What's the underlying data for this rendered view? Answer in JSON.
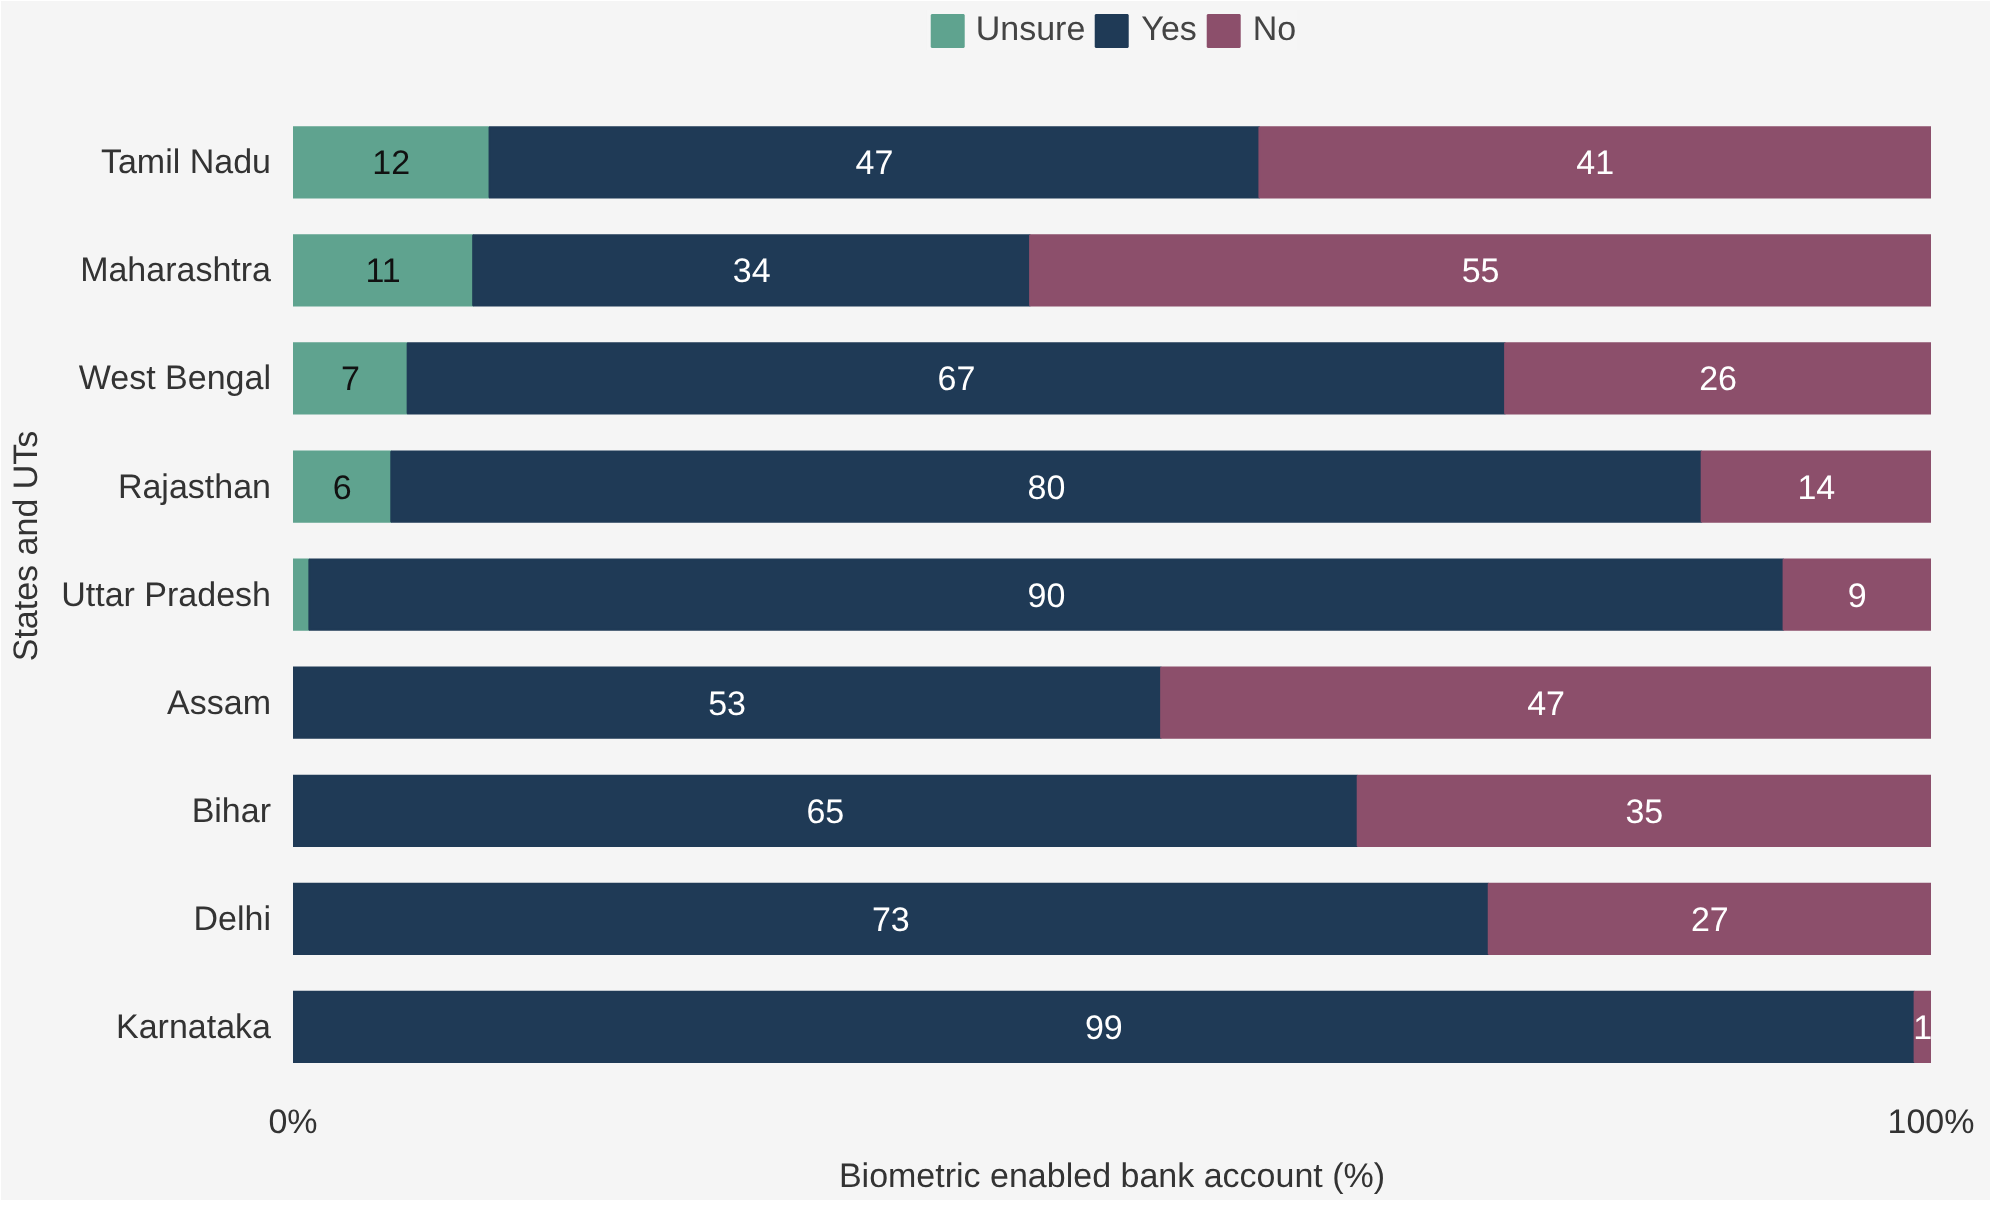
{
  "chart_data": {
    "type": "bar",
    "orientation": "horizontal",
    "stacked": true,
    "xlabel": "Biometric enabled bank account (%)",
    "ylabel": "States and UTs",
    "categories": [
      "Tamil Nadu",
      "Maharashtra",
      "West Bengal",
      "Rajasthan",
      "Uttar Pradesh",
      "Assam",
      "Bihar",
      "Delhi",
      "Karnataka"
    ],
    "series": [
      {
        "name": "Unsure",
        "color": "#5fa38f",
        "values": [
          12,
          11,
          7,
          6,
          1,
          null,
          null,
          null,
          null
        ],
        "value_labels": [
          "12",
          "11",
          "7",
          "6",
          null,
          null,
          null,
          null,
          null
        ]
      },
      {
        "name": "Yes",
        "color": "#1f3a56",
        "values": [
          47,
          34,
          67,
          80,
          90,
          53,
          65,
          73,
          99
        ],
        "value_labels": [
          "47",
          "34",
          "67",
          "80",
          "90",
          "53",
          "65",
          "73",
          "99"
        ]
      },
      {
        "name": "No",
        "color": "#8c4f6b",
        "values": [
          41,
          55,
          26,
          14,
          9,
          47,
          35,
          27,
          1
        ],
        "value_labels": [
          "41",
          "55",
          "26",
          "14",
          "9",
          "47",
          "35",
          "27",
          "1"
        ]
      }
    ],
    "xlim": [
      0,
      100
    ],
    "xticks": [
      {
        "value": 0,
        "label": "0%"
      },
      {
        "value": 100,
        "label": "100%"
      }
    ],
    "legend": "top"
  }
}
